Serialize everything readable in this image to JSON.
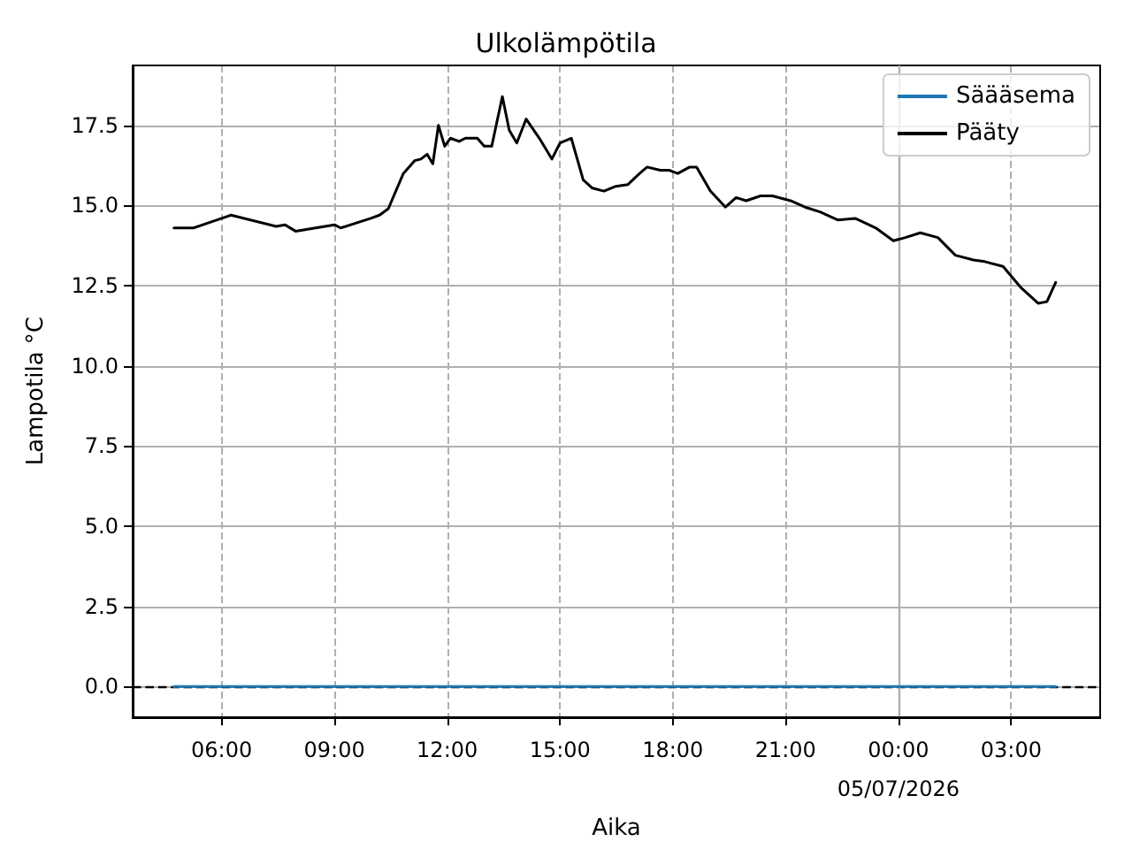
{
  "chart_data": {
    "type": "line",
    "title": "Ulkolämpötila",
    "xlabel": "Aika",
    "ylabel": "Lampotila °C",
    "series": [
      {
        "name": "Säääsema",
        "color": "#1f77b4",
        "x": [
          "2026-07-04T04:44",
          "2026-07-04T12:00",
          "2026-07-04T18:00",
          "2026-07-05T00:00",
          "2026-07-05T04:11"
        ],
        "values": [
          0,
          0,
          0,
          0,
          0
        ]
      },
      {
        "name": "Pääty",
        "color": "#000000",
        "x": [
          "2026-07-04T04:44",
          "2026-07-04T05:15",
          "2026-07-04T06:00",
          "2026-07-04T06:15",
          "2026-07-04T07:27",
          "2026-07-04T07:41",
          "2026-07-04T07:58",
          "2026-07-04T09:00",
          "2026-07-04T09:10",
          "2026-07-04T09:58",
          "2026-07-04T10:12",
          "2026-07-04T10:26",
          "2026-07-04T10:50",
          "2026-07-04T11:08",
          "2026-07-04T11:18",
          "2026-07-04T11:28",
          "2026-07-04T11:37",
          "2026-07-04T11:46",
          "2026-07-04T11:56",
          "2026-07-04T12:05",
          "2026-07-04T12:19",
          "2026-07-04T12:29",
          "2026-07-04T12:48",
          "2026-07-04T12:59",
          "2026-07-04T13:11",
          "2026-07-04T13:28",
          "2026-07-04T13:39",
          "2026-07-04T13:51",
          "2026-07-04T14:06",
          "2026-07-04T14:27",
          "2026-07-04T14:47",
          "2026-07-04T15:00",
          "2026-07-04T15:18",
          "2026-07-04T15:37",
          "2026-07-04T15:51",
          "2026-07-04T16:10",
          "2026-07-04T16:29",
          "2026-07-04T16:48",
          "2026-07-04T17:07",
          "2026-07-04T17:19",
          "2026-07-04T17:40",
          "2026-07-04T17:54",
          "2026-07-04T18:08",
          "2026-07-04T18:27",
          "2026-07-04T18:38",
          "2026-07-04T19:00",
          "2026-07-04T19:24",
          "2026-07-04T19:41",
          "2026-07-04T19:57",
          "2026-07-04T20:20",
          "2026-07-04T20:39",
          "2026-07-04T21:08",
          "2026-07-04T21:31",
          "2026-07-04T21:55",
          "2026-07-04T22:23",
          "2026-07-04T22:51",
          "2026-07-04T23:24",
          "2026-07-04T23:52",
          "2026-07-05T00:11",
          "2026-07-05T00:35",
          "2026-07-05T01:03",
          "2026-07-05T01:31",
          "2026-07-05T02:00",
          "2026-07-05T02:18",
          "2026-07-05T02:47",
          "2026-07-05T03:15",
          "2026-07-05T03:43",
          "2026-07-05T03:57",
          "2026-07-05T04:11"
        ],
        "values": [
          14.3,
          14.3,
          14.6,
          14.7,
          14.35,
          14.4,
          14.2,
          14.4,
          14.3,
          14.6,
          14.7,
          14.9,
          16.0,
          16.4,
          16.45,
          16.6,
          16.3,
          17.5,
          16.85,
          17.1,
          17.0,
          17.1,
          17.1,
          16.85,
          16.85,
          18.4,
          17.35,
          16.95,
          17.7,
          17.1,
          16.45,
          16.95,
          17.1,
          15.8,
          15.55,
          15.45,
          15.6,
          15.65,
          16.0,
          16.2,
          16.1,
          16.1,
          16.0,
          16.2,
          16.2,
          15.45,
          14.95,
          15.25,
          15.15,
          15.3,
          15.3,
          15.15,
          14.95,
          14.8,
          14.55,
          14.6,
          14.3,
          13.9,
          14.0,
          14.15,
          14.0,
          13.45,
          13.3,
          13.25,
          13.1,
          12.45,
          11.95,
          12.0,
          12.6
        ]
      }
    ],
    "xlim": [
      "2026-07-04T03:38",
      "2026-07-05T05:22"
    ],
    "xticks": [
      {
        "value": "2026-07-04T06:00",
        "label": "06:00"
      },
      {
        "value": "2026-07-04T09:00",
        "label": "09:00"
      },
      {
        "value": "2026-07-04T12:00",
        "label": "12:00"
      },
      {
        "value": "2026-07-04T15:00",
        "label": "15:00"
      },
      {
        "value": "2026-07-04T18:00",
        "label": "18:00"
      },
      {
        "value": "2026-07-04T21:00",
        "label": "21:00"
      },
      {
        "value": "2026-07-05T00:00",
        "label": "00:00\n05/07/2026"
      },
      {
        "value": "2026-07-05T03:00",
        "label": "03:00"
      }
    ],
    "ylim": [
      -0.94,
      19.37
    ],
    "yticks": [
      {
        "value": 0,
        "label": "0.0"
      },
      {
        "value": 2.5,
        "label": "2.5"
      },
      {
        "value": 5,
        "label": "5.0"
      },
      {
        "value": 7.5,
        "label": "7.5"
      },
      {
        "value": 10,
        "label": "10.0"
      },
      {
        "value": 12.5,
        "label": "12.5"
      },
      {
        "value": 15,
        "label": "15.0"
      },
      {
        "value": 17.5,
        "label": "17.5"
      }
    ],
    "ref_lines": [
      {
        "axis": "y",
        "value": 0,
        "color": "#000000",
        "line_style": "dashed"
      },
      {
        "axis": "x",
        "value": "2026-07-05T00:00",
        "color": "#b0b0b0",
        "line_style": "solid"
      }
    ],
    "grid": true,
    "legend": "top right",
    "marker": "none",
    "line_style": "solid"
  }
}
